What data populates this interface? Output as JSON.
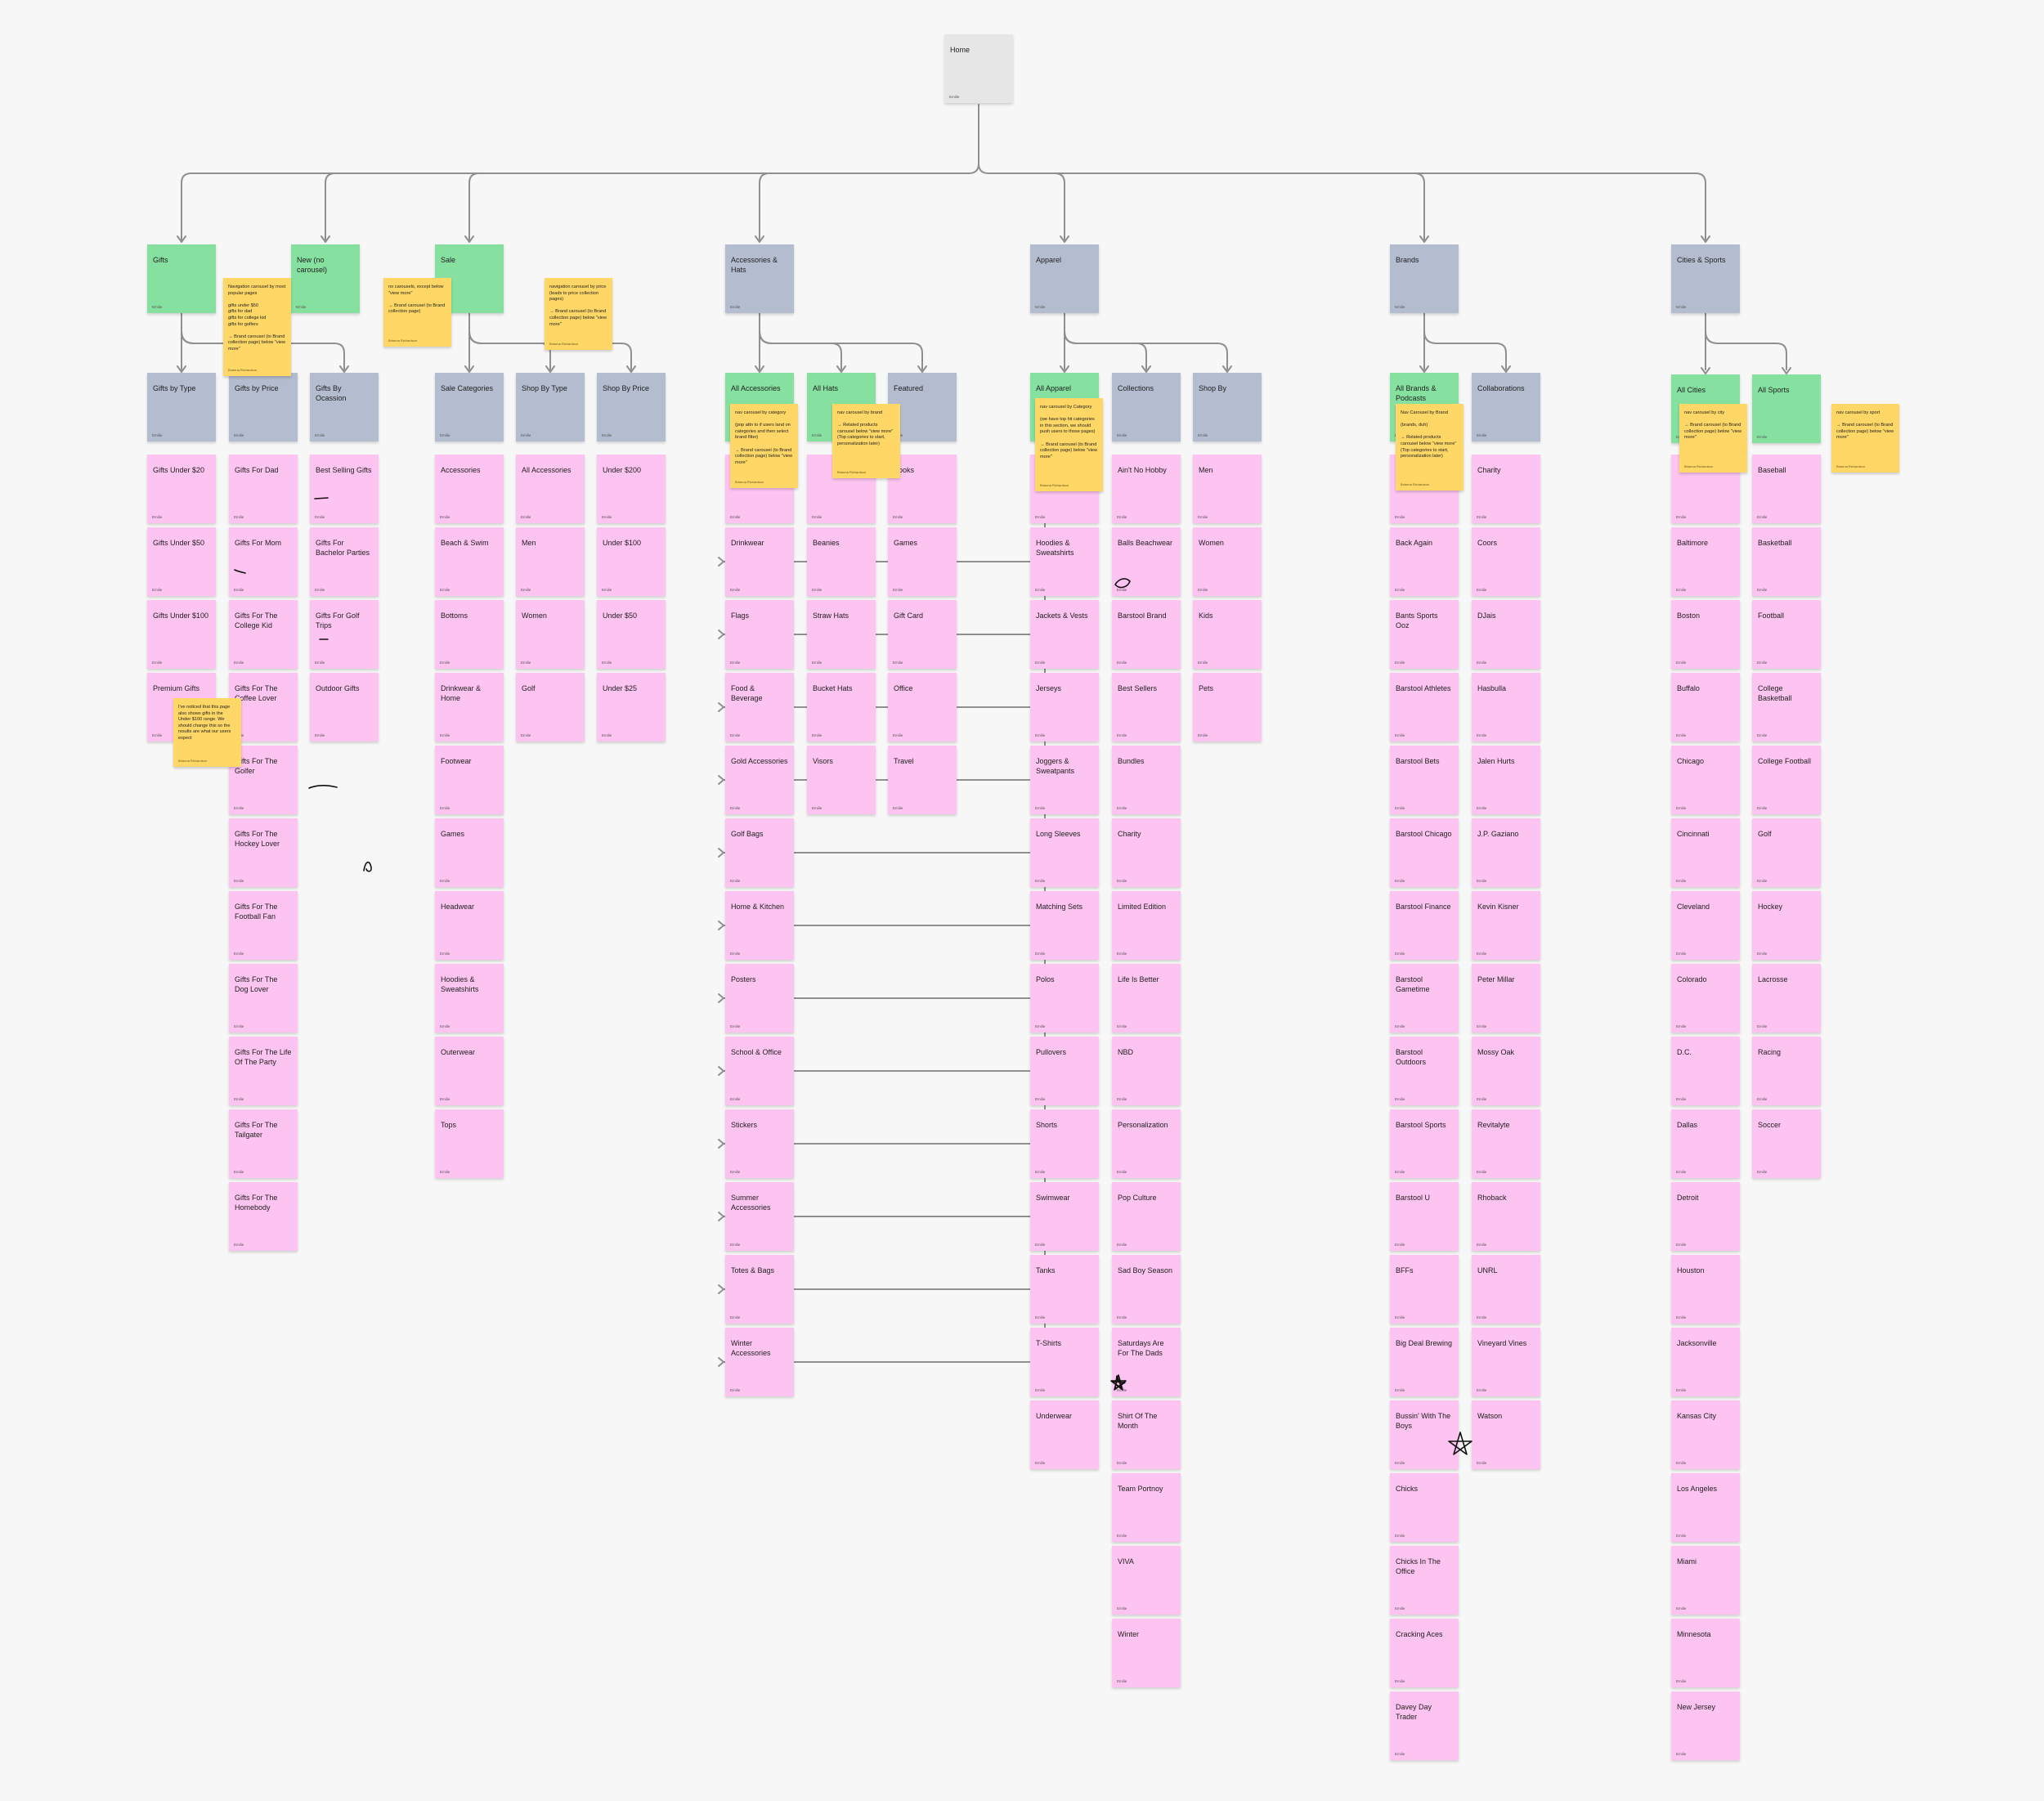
{
  "author": "Emilie",
  "note_author": "Brianna Richardson",
  "home": {
    "label": "Home"
  },
  "sections": [
    {
      "key": "gifts",
      "label": "Gifts",
      "kind": "green",
      "subs": [
        {
          "label": "Gifts by Type",
          "kind": "blue",
          "items": [
            "Gifts Under $20",
            "Gifts Under $50",
            "Gifts Under $100",
            "Premium Gifts"
          ]
        },
        {
          "label": "Gifts by Price",
          "kind": "blue",
          "items": [
            "Gifts For Dad",
            "Gifts For Mom",
            "Gifts For The College Kid",
            "Gifts For The Coffee Lover",
            "Gifts For The Golfer",
            "Gifts For The Hockey Lover",
            "Gifts For The Football Fan",
            "Gifts For The Dog Lover",
            "Gifts For The Life Of The Party",
            "Gifts For The Tailgater",
            "Gifts For The Homebody"
          ]
        },
        {
          "label": "Gifts By Ocassion",
          "kind": "blue",
          "items": [
            "Best Selling Gifts",
            "Gifts For Bachelor Parties",
            "Gifts For Golf Trips",
            "Outdoor Gifts"
          ]
        }
      ]
    },
    {
      "key": "new",
      "label": "New (no carousel)",
      "kind": "green",
      "subs": []
    },
    {
      "key": "sale",
      "label": "Sale",
      "kind": "green",
      "subs": [
        {
          "label": "Sale Categories",
          "kind": "blue",
          "items": [
            "Accessories",
            "Beach & Swim",
            "Bottoms",
            "Drinkwear & Home",
            "Footwear",
            "Games",
            "Headwear",
            "Hoodies & Sweatshirts",
            "Outerwear",
            "Tops"
          ]
        },
        {
          "label": "Shop By Type",
          "kind": "blue",
          "items": [
            "All Accessories",
            "Men",
            "Women",
            "Golf"
          ]
        },
        {
          "label": "Shop By Price",
          "kind": "blue",
          "items": [
            "Under $200",
            "Under $100",
            "Under $50",
            "Under $25"
          ]
        }
      ]
    },
    {
      "key": "accessories",
      "label": "Accessories & Hats",
      "kind": "blue",
      "subs": [
        {
          "label": "All Accessories",
          "kind": "green",
          "items": [
            "",
            "Drinkwear",
            "Flags",
            "Food & Beverage",
            "Gold Accessories",
            "Golf Bags",
            "Home & Kitchen",
            "Posters",
            "School & Office",
            "Stickers",
            "Summer Accessories",
            "Totes & Bags",
            "Winter Accessories"
          ]
        },
        {
          "label": "All Hats",
          "kind": "green",
          "items": [
            "",
            "Beanies",
            "Straw Hats",
            "Bucket Hats",
            "Visors"
          ]
        },
        {
          "label": "Featured",
          "kind": "blue",
          "items": [
            "Books",
            "Games",
            "Gift Card",
            "Office",
            "Travel"
          ]
        }
      ]
    },
    {
      "key": "apparel",
      "label": "Apparel",
      "kind": "blue",
      "subs": [
        {
          "label": "All Apparel",
          "kind": "green",
          "items": [
            "",
            "Hoodies & Sweatshirts",
            "Jackets & Vests",
            "Jerseys",
            "Joggers & Sweatpants",
            "Long Sleeves",
            "Matching Sets",
            "Polos",
            "Pullovers",
            "Shorts",
            "Swimwear",
            "Tanks",
            "T-Shirts",
            "Underwear"
          ]
        },
        {
          "label": "Collections",
          "kind": "blue",
          "items": [
            "Ain't No Hobby",
            "Balls Beachwear",
            "Barstool Brand",
            "Best Sellers",
            "Bundles",
            "Charity",
            "Limited Edition",
            "Life Is Better",
            "NBD",
            "Personalization",
            "Pop Culture",
            "Sad Boy Season",
            "Saturdays Are For The Dads",
            "Shirt Of The Month",
            "Team Portnoy",
            "VIVA",
            "Winter"
          ]
        },
        {
          "label": "Shop By",
          "kind": "blue",
          "items": [
            "Men",
            "Women",
            "Kids",
            "Pets"
          ]
        }
      ]
    },
    {
      "key": "brands",
      "label": "Brands",
      "kind": "blue",
      "subs": [
        {
          "label": "All Brands & Podcasts",
          "kind": "green",
          "items": [
            "",
            "Back Again",
            "Bants Sports Ooz",
            "Barstool Athletes",
            "Barstool Bets",
            "Barstool Chicago",
            "Barstool Finance",
            "Barstool Gametime",
            "Barstool Outdoors",
            "Barstool Sports",
            "Barstool U",
            "BFFs",
            "Big Deal Brewing",
            "Bussin' With The Boys",
            "Chicks",
            "Chicks In The Office",
            "Cracking Aces",
            "Davey Day Trader"
          ]
        },
        {
          "label": "Collaborations",
          "kind": "blue",
          "items": [
            "Charity",
            "Coors",
            "DJais",
            "Hasbulla",
            "Jalen Hurts",
            "J.P. Gaziano",
            "Kevin Kisner",
            "Peter Millar",
            "Mossy Oak",
            "Revitalyte",
            "Rhoback",
            "UNRL",
            "Vineyard Vines",
            "Watson"
          ]
        }
      ]
    },
    {
      "key": "cities",
      "label": "Cities & Sports",
      "kind": "blue",
      "subs": [
        {
          "label": "All Cities",
          "kind": "green",
          "items": [
            "",
            "Baltimore",
            "Boston",
            "Buffalo",
            "Chicago",
            "Cincinnati",
            "Cleveland",
            "Colorado",
            "D.C.",
            "Dallas",
            "Detroit",
            "Houston",
            "Jacksonville",
            "Kansas City",
            "Los Angeles",
            "Miami",
            "Minnesota",
            "New Jersey"
          ]
        },
        {
          "label": "All Sports",
          "kind": "green",
          "items": [
            "Baseball",
            "Basketball",
            "Football",
            "College Basketball",
            "College Football",
            "Golf",
            "Hockey",
            "Lacrosse",
            "Racing",
            "Soccer"
          ]
        }
      ]
    }
  ],
  "notes": [
    {
      "text": "Navigation carousel by most popular pages\n\ngifts under $50\ngifts for dad\ngifts for college kid\ngifts for golfers\n\n→ Brand carousel (to Brand collection page) below \"view more\""
    },
    {
      "text": "no carousels, except below \"view more\"\n\n→ Brand carousel (to Brand collection page)"
    },
    {
      "text": "navigation carousel by price (leads to price collection pages)\n\n→ Brand carousel (to Brand collection page) below \"view more\""
    },
    {
      "text": "nav carousel by category\n\n(pop attn to if users land on categories and then select brand filter)\n\n→ Brand carousel (to Brand collection page) below \"view more\""
    },
    {
      "text": "nav carousel by brand\n\n→ Related products carousel below \"view more\" (Top categories to start, personalization later)"
    },
    {
      "text": "nav carousel by Category\n\n(we have top hit categories in this section, we should push users to those pages)\n\n→ Brand carousel (to Brand collection page) below \"view more\""
    },
    {
      "text": "Nav Carousel by Brand\n\n(brands, duh)\n\n→ Related products carousel below \"view more\" (Top categories to start, personalization later)"
    },
    {
      "text": "nav carousel by city\n\n→ Brand carousel (to Brand collection page) below \"view more\""
    },
    {
      "text": "nav carousel by sport\n\n→ Brand carousel (to Brand collection page) below \"view more\""
    },
    {
      "text": "I've noticed that this page also shows gifts in the Under $100 range. We should change this so the results are what our users expect"
    }
  ],
  "colors": {
    "home": "#e6e6e6",
    "green": "#86e0a0",
    "blue": "#b3bdcf",
    "item": "#fdc4f1",
    "note": "#fed766",
    "connector": "#8f8f8f"
  },
  "doodles": [
    "pen-stroke",
    "pen-stroke",
    "pen-stroke",
    "pen-stroke",
    "scribble",
    "scribble",
    "star-doodle",
    "star-doodle",
    "star-doodle"
  ]
}
